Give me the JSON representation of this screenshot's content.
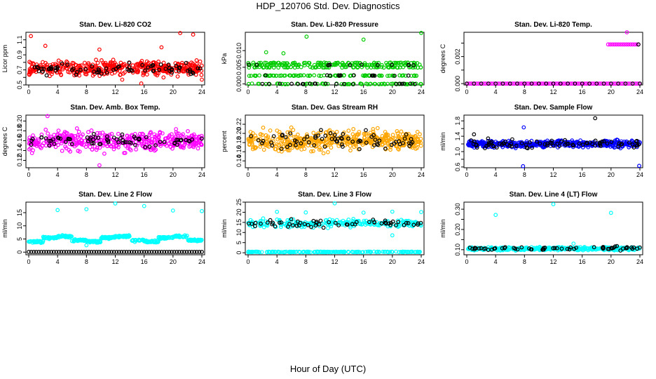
{
  "title": "HDP_120706  Std. Dev. Diagnostics",
  "xlabel": "Hour of Day (UTC)",
  "chart_data": [
    {
      "type": "scatter",
      "title": "Stan. Dev. Li-820 CO2",
      "ylabel": "Licor ppm",
      "xlim": [
        0,
        24
      ],
      "ylim": [
        0.5,
        1.2
      ],
      "xticks": [
        0,
        4,
        8,
        12,
        16,
        20,
        24
      ],
      "yticks": [
        0.5,
        0.6,
        0.7,
        0.8,
        0.9,
        1.0,
        1.1
      ],
      "ytick_labels": [
        "0.5",
        "",
        "0.7",
        "",
        "0.9",
        "",
        "1.1"
      ],
      "colors": {
        "bg": "#ff0000",
        "fg": "#000000"
      },
      "bg_series": {
        "n": 440,
        "base": 0.72,
        "spread": 0.09,
        "outliers": [
          [
            0.3,
            1.15
          ],
          [
            2.3,
            1.02
          ],
          [
            21.0,
            1.19
          ],
          [
            22.8,
            1.17
          ],
          [
            15.6,
            0.52
          ],
          [
            24.0,
            0.57
          ],
          [
            9.8,
            0.97
          ],
          [
            18.4,
            1.0
          ]
        ]
      },
      "fg_series": {
        "n": 75,
        "base": 0.71,
        "spread": 0.07,
        "outliers": []
      }
    },
    {
      "type": "scatter",
      "title": "Stan. Dev. Li-820 Pressure",
      "ylabel": "kPa",
      "xlim": [
        0,
        24
      ],
      "ylim": [
        -0.0003,
        0.0155
      ],
      "xticks": [
        0,
        4,
        8,
        12,
        16,
        20,
        24
      ],
      "yticks": [
        0.0,
        0.005,
        0.01
      ],
      "ytick_labels": [
        "0.000",
        "0.005",
        "0.010"
      ],
      "colors": {
        "bg": "#00cc00",
        "fg": "#000000"
      },
      "bg_series": {
        "levels": [
          0.0,
          0.0025,
          0.005,
          0.0057,
          0.0063
        ],
        "n": 380,
        "outliers": [
          [
            8.1,
            0.0142
          ],
          [
            16.0,
            0.0133
          ],
          [
            24.0,
            0.0153
          ],
          [
            2.5,
            0.0095
          ],
          [
            4.9,
            0.0092
          ]
        ]
      },
      "fg_series": {
        "levels": [
          0.0,
          0.0025,
          0.0057
        ],
        "n": 45,
        "outliers": []
      }
    },
    {
      "type": "scatter",
      "title": "Stan. Dev. Li-820 Temp.",
      "ylabel": "degrees C",
      "xlim": [
        0,
        24
      ],
      "ylim": [
        -0.0001,
        0.0038
      ],
      "xticks": [
        0,
        4,
        8,
        12,
        16,
        20,
        24
      ],
      "yticks": [
        0.0,
        0.001,
        0.002,
        0.003
      ],
      "ytick_labels": [
        "0.000",
        "",
        "0.002",
        ""
      ],
      "colors": {
        "bg": "#ff00ff",
        "fg": "#000000"
      },
      "bg_series": {
        "zeros_n": 120,
        "cluster": {
          "x_range": [
            19.6,
            23.8
          ],
          "y": 0.0029,
          "n": 16
        },
        "outliers": [
          [
            22.2,
            0.0041
          ]
        ]
      },
      "fg_series": {
        "zeros_n": 25,
        "outliers": [
          [
            23.8,
            0.0029
          ]
        ]
      }
    },
    {
      "type": "scatter",
      "title": "Stan. Dev. Amb. Box Temp.",
      "ylabel": "degrees C",
      "xlim": [
        0,
        24
      ],
      "ylim": [
        0.105,
        0.212
      ],
      "xticks": [
        0,
        4,
        8,
        12,
        16,
        20,
        24
      ],
      "yticks": [
        0.12,
        0.14,
        0.16,
        0.18,
        0.2
      ],
      "ytick_labels": [
        "0.12",
        "0.14",
        "0.16",
        "0.18",
        "0.20"
      ],
      "colors": {
        "bg": "#ff00ff",
        "fg": "#000000"
      },
      "bg_series": {
        "n": 440,
        "base": 0.16,
        "spread": 0.017,
        "outliers": [
          [
            2.6,
            0.21
          ],
          [
            9.8,
            0.11
          ]
        ]
      },
      "fg_series": {
        "n": 70,
        "base": 0.16,
        "spread": 0.012,
        "outliers": []
      }
    },
    {
      "type": "scatter",
      "title": "Stan. Dev. Gas Stream RH",
      "ylabel": "percent",
      "xlim": [
        0,
        24
      ],
      "ylim": [
        0.125,
        0.24
      ],
      "xticks": [
        0,
        4,
        8,
        12,
        16,
        20,
        24
      ],
      "yticks": [
        0.14,
        0.16,
        0.18,
        0.2,
        0.22
      ],
      "ytick_labels": [
        "0.14",
        "0.16",
        "0.18",
        "0.20",
        "0.22"
      ],
      "colors": {
        "bg": "#ffa500",
        "fg": "#000000"
      },
      "bg_series": {
        "n": 460,
        "base": 0.185,
        "spread": 0.02,
        "outliers": []
      },
      "fg_series": {
        "n": 70,
        "base": 0.185,
        "spread": 0.018,
        "outliers": []
      }
    },
    {
      "type": "scatter",
      "title": "Stan. Dev. Sample Flow",
      "ylabel": "ml/min",
      "xlim": [
        0,
        24
      ],
      "ylim": [
        0.58,
        1.95
      ],
      "xticks": [
        0,
        4,
        8,
        12,
        16,
        20,
        24
      ],
      "yticks": [
        0.6,
        0.8,
        1.0,
        1.2,
        1.4,
        1.6,
        1.8
      ],
      "ytick_labels": [
        "0.6",
        "",
        "1.0",
        "",
        "1.4",
        "",
        "1.8"
      ],
      "colors": {
        "bg": "#0000ff",
        "fg": "#000000"
      },
      "bg_series": {
        "n": 460,
        "base": 1.2,
        "spread": 0.08,
        "outliers": [
          [
            7.8,
            0.62
          ],
          [
            23.9,
            0.63
          ],
          [
            7.9,
            1.63
          ]
        ]
      },
      "fg_series": {
        "n": 80,
        "base": 1.2,
        "spread": 0.1,
        "outliers": [
          [
            17.8,
            1.87
          ],
          [
            1.0,
            1.45
          ]
        ]
      }
    },
    {
      "type": "scatter",
      "title": "Stan. Dev. Line 2 Flow",
      "ylabel": "ml/min",
      "xlim": [
        0,
        24
      ],
      "ylim": [
        -1,
        19
      ],
      "xticks": [
        0,
        4,
        8,
        12,
        16,
        20,
        24
      ],
      "yticks": [
        0,
        5,
        10,
        15
      ],
      "ytick_labels": [
        "0",
        "5",
        "10",
        "15"
      ],
      "colors": {
        "bg": "#00ffff",
        "fg": "#000000"
      },
      "bg_series": {
        "step_levels": [
          4.0,
          5.5,
          6.0,
          4.5
        ],
        "n": 420,
        "outliers": [
          [
            4.0,
            16.0
          ],
          [
            8.0,
            16.3
          ],
          [
            12.0,
            18.5
          ],
          [
            16.0,
            17.5
          ],
          [
            20.0,
            15.8
          ],
          [
            24.0,
            15.6
          ],
          [
            8.0,
            2.6
          ]
        ]
      },
      "fg_series": {
        "y": 0.1,
        "n": 70,
        "outliers": []
      }
    },
    {
      "type": "scatter",
      "title": "Stan. Dev. Line 3 Flow",
      "ylabel": "ml/min",
      "xlim": [
        0,
        24
      ],
      "ylim": [
        -1,
        25
      ],
      "xticks": [
        0,
        4,
        8,
        12,
        16,
        20,
        24
      ],
      "yticks": [
        0,
        5,
        10,
        15,
        20,
        25
      ],
      "ytick_labels": [
        "0",
        "5",
        "10",
        "15",
        "20",
        "25"
      ],
      "colors": {
        "bg": "#00ffff",
        "fg": "#000000"
      },
      "bg_series": {
        "low_y": 0.4,
        "low_n": 200,
        "band": {
          "base": 14.5,
          "spread": 1.8
        },
        "band_n": 220,
        "outliers": [
          [
            4.0,
            20.2
          ],
          [
            8.0,
            19.9
          ],
          [
            12.0,
            24.4
          ],
          [
            16.0,
            19.8
          ],
          [
            20.0,
            20.3
          ],
          [
            24.0,
            20.1
          ],
          [
            20.0,
            8.6
          ]
        ]
      },
      "fg_series": {
        "band": {
          "base": 14.5,
          "spread": 1.5
        },
        "n": 60,
        "outliers": []
      }
    },
    {
      "type": "scatter",
      "title": "Stan. Dev. Line 4 (LT) Flow",
      "ylabel": "ml/min",
      "xlim": [
        0,
        24
      ],
      "ylim": [
        0.075,
        0.335
      ],
      "xticks": [
        0,
        4,
        8,
        12,
        16,
        20,
        24
      ],
      "yticks": [
        0.1,
        0.15,
        0.2,
        0.25,
        0.3
      ],
      "ytick_labels": [
        "0.10",
        "",
        "0.20",
        "",
        "0.30"
      ],
      "colors": {
        "bg": "#00ffff",
        "fg": "#000000"
      },
      "bg_series": {
        "n": 420,
        "base": 0.105,
        "spread": 0.007,
        "outliers": [
          [
            4.0,
            0.272
          ],
          [
            12.0,
            0.325
          ],
          [
            20.0,
            0.282
          ],
          [
            14.8,
            0.13
          ]
        ]
      },
      "fg_series": {
        "n": 60,
        "base": 0.107,
        "spread": 0.008,
        "outliers": []
      }
    }
  ]
}
